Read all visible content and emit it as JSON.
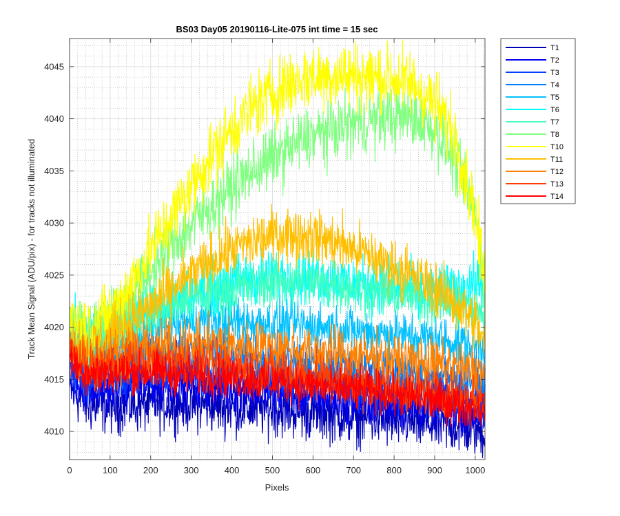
{
  "chart_data": {
    "type": "line",
    "title": "BS03 Day05 20190116-Lite-075 int time = 15 sec",
    "xlabel": "Pixels",
    "ylabel": "Track Mean Signal (ADU/pix) - for tracks not illuminated",
    "xlim": [
      0,
      1024
    ],
    "ylim": [
      4007.3,
      4047.7
    ],
    "xticks": [
      0,
      100,
      200,
      300,
      400,
      500,
      600,
      700,
      800,
      900,
      1000
    ],
    "yticks": [
      4010,
      4015,
      4020,
      4025,
      4030,
      4035,
      4040,
      4045
    ],
    "grid": "major and minor",
    "legend_location": "outside-top-right",
    "x": [
      0,
      25,
      50,
      100,
      150,
      200,
      250,
      300,
      350,
      400,
      450,
      500,
      550,
      600,
      650,
      700,
      750,
      800,
      850,
      900,
      950,
      1000,
      1024
    ],
    "series": [
      {
        "name": "T1",
        "color": "#0000b8",
        "noise": 2.6,
        "values": [
          4014,
          4013.2,
          4012.5,
          4012.5,
          4012.5,
          4012.6,
          4012.7,
          4012.7,
          4012.5,
          4012.3,
          4012.2,
          4012.2,
          4012.0,
          4011.8,
          4011.6,
          4011.4,
          4011.2,
          4011.0,
          4010.9,
          4010.7,
          4010.5,
          4010.2,
          4010.0
        ]
      },
      {
        "name": "T2",
        "color": "#0000f0",
        "noise": 2.2,
        "values": [
          4015,
          4014.2,
          4013.8,
          4014.2,
          4014.5,
          4014.6,
          4014.6,
          4014.5,
          4014.4,
          4014.2,
          4014.0,
          4013.8,
          4013.6,
          4013.4,
          4013.2,
          4013.0,
          4012.8,
          4012.6,
          4012.4,
          4012.2,
          4012.0,
          4011.8,
          4011.5
        ]
      },
      {
        "name": "T3",
        "color": "#0040ff",
        "noise": 2.2,
        "values": [
          4016,
          4015.2,
          4015.0,
          4015.4,
          4015.8,
          4016.0,
          4016.0,
          4015.9,
          4015.8,
          4015.6,
          4015.4,
          4015.2,
          4015.0,
          4014.8,
          4014.6,
          4014.4,
          4014.2,
          4014.0,
          4013.8,
          4013.6,
          4013.3,
          4013.0,
          4012.8
        ]
      },
      {
        "name": "T4",
        "color": "#0080ff",
        "noise": 2.2,
        "values": [
          4018,
          4017.0,
          4016.8,
          4017.2,
          4017.6,
          4017.8,
          4017.8,
          4017.7,
          4017.6,
          4017.4,
          4017.2,
          4017.0,
          4016.8,
          4016.6,
          4016.4,
          4016.2,
          4016.0,
          4015.8,
          4015.6,
          4015.4,
          4015.2,
          4015.0,
          4014.8
        ]
      },
      {
        "name": "T5",
        "color": "#00c0ff",
        "noise": 2.2,
        "values": [
          4019,
          4018.2,
          4018.0,
          4018.8,
          4019.5,
          4020.0,
          4020.3,
          4020.5,
          4020.6,
          4020.6,
          4020.5,
          4020.4,
          4020.3,
          4020.1,
          4019.9,
          4019.7,
          4019.5,
          4019.3,
          4019.1,
          4018.9,
          4018.6,
          4018.3,
          4018.0
        ]
      },
      {
        "name": "T6",
        "color": "#00ffff",
        "noise": 2.6,
        "values": [
          4020,
          4019.2,
          4019.0,
          4019.8,
          4020.8,
          4021.8,
          4022.6,
          4023.3,
          4023.8,
          4024.3,
          4024.6,
          4024.8,
          4024.9,
          4024.8,
          4024.6,
          4024.3,
          4024.0,
          4023.8,
          4023.6,
          4023.5,
          4023.6,
          4024.2,
          4024.5
        ]
      },
      {
        "name": "T7",
        "color": "#40ffc0",
        "noise": 2.4,
        "values": [
          4020,
          4019.4,
          4019.2,
          4019.8,
          4020.6,
          4021.4,
          4022.1,
          4022.7,
          4023.2,
          4023.7,
          4024.0,
          4024.3,
          4024.4,
          4024.3,
          4024.1,
          4023.8,
          4023.5,
          4023.2,
          4023.0,
          4022.6,
          4022.2,
          4021.5,
          4021.0
        ]
      },
      {
        "name": "T8",
        "color": "#80ff80",
        "noise": 3.0,
        "values": [
          4020,
          4019.6,
          4019.8,
          4020.6,
          4022.8,
          4025.3,
          4027.7,
          4029.8,
          4031.7,
          4033.5,
          4035.0,
          4036.3,
          4037.4,
          4038.3,
          4039.0,
          4039.5,
          4039.9,
          4040.2,
          4040.2,
          4039.0,
          4036.0,
          4031.0,
          4024.0
        ]
      },
      {
        "name": "T10",
        "color": "#ffff00",
        "noise": 3.2,
        "values": [
          4021,
          4020.0,
          4020.0,
          4021.0,
          4024.0,
          4027.5,
          4030.5,
          4033.5,
          4036.5,
          4039.0,
          4041.0,
          4042.5,
          4043.5,
          4044.0,
          4044.2,
          4044.2,
          4044.0,
          4043.8,
          4043.3,
          4041.5,
          4038.5,
          4031.0,
          4024.0
        ]
      },
      {
        "name": "T11",
        "color": "#ffbf00",
        "noise": 2.6,
        "values": [
          4019,
          4018.5,
          4018.2,
          4019.2,
          4020.6,
          4022.0,
          4023.5,
          4025.0,
          4026.3,
          4027.4,
          4028.2,
          4028.8,
          4029.0,
          4028.7,
          4028.2,
          4027.5,
          4026.7,
          4025.8,
          4024.8,
          4023.8,
          4022.5,
          4020.5,
          4018.5
        ]
      },
      {
        "name": "T12",
        "color": "#ff8000",
        "noise": 2.4,
        "values": [
          4018,
          4017.3,
          4017.0,
          4017.4,
          4017.8,
          4018.0,
          4018.2,
          4018.3,
          4018.3,
          4018.3,
          4018.2,
          4018.0,
          4017.9,
          4017.7,
          4017.5,
          4017.3,
          4017.1,
          4016.9,
          4016.7,
          4016.5,
          4016.2,
          4015.8,
          4015.5
        ]
      },
      {
        "name": "T13",
        "color": "#ff4000",
        "noise": 2.2,
        "values": [
          4017.5,
          4016.6,
          4016.2,
          4016.4,
          4016.6,
          4016.7,
          4016.7,
          4016.6,
          4016.4,
          4016.2,
          4016.0,
          4015.8,
          4015.5,
          4015.3,
          4015.0,
          4014.8,
          4014.5,
          4014.2,
          4014.0,
          4013.7,
          4013.4,
          4013.1,
          4012.8
        ]
      },
      {
        "name": "T14",
        "color": "#ff0000",
        "noise": 2.0,
        "values": [
          4017,
          4016.0,
          4015.6,
          4015.6,
          4015.7,
          4015.7,
          4015.6,
          4015.5,
          4015.3,
          4015.2,
          4015.0,
          4014.8,
          4014.6,
          4014.4,
          4014.2,
          4014.0,
          4013.8,
          4013.5,
          4013.3,
          4013.0,
          4012.7,
          4012.4,
          4012.2
        ]
      }
    ]
  }
}
